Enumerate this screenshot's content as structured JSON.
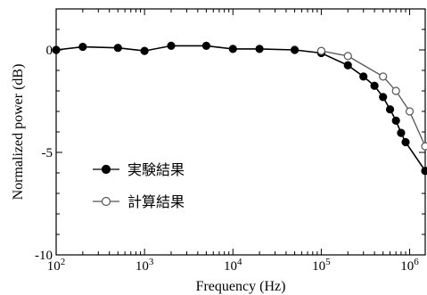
{
  "chart_data": {
    "type": "line",
    "xlabel": "Frequency (Hz)",
    "ylabel": "Normalized power (dB)",
    "x_scale": "log",
    "xlim": [
      100,
      1500000
    ],
    "ylim": [
      -10,
      2
    ],
    "grid": false,
    "legend_position": "lower-left",
    "x_ticks": [
      {
        "value": 100,
        "base": "10",
        "exp": "2"
      },
      {
        "value": 1000,
        "base": "10",
        "exp": "3"
      },
      {
        "value": 10000,
        "base": "10",
        "exp": "4"
      },
      {
        "value": 100000,
        "base": "10",
        "exp": "5"
      },
      {
        "value": 1000000,
        "base": "10",
        "exp": "6"
      }
    ],
    "y_ticks": [
      {
        "value": 0,
        "label": "0"
      },
      {
        "value": -5,
        "label": "-5"
      },
      {
        "value": -10,
        "label": "-10"
      }
    ],
    "series": [
      {
        "name": "実験結果",
        "marker": "filled-circle",
        "color": "#000000",
        "x": [
          100,
          200,
          500,
          1000,
          2000,
          5000,
          10000,
          20000,
          50000,
          100000,
          200000,
          300000,
          400000,
          500000,
          600000,
          700000,
          800000,
          900000,
          1500000
        ],
        "y": [
          0.0,
          0.15,
          0.1,
          -0.05,
          0.2,
          0.2,
          0.05,
          0.05,
          0.0,
          -0.15,
          -0.75,
          -1.3,
          -1.75,
          -2.3,
          -2.9,
          -3.45,
          -4.05,
          -4.5,
          -5.9
        ]
      },
      {
        "name": "計算結果",
        "marker": "open-circle",
        "color": "#555555",
        "x": [
          100000,
          200000,
          500000,
          700000,
          1000000,
          1500000
        ],
        "y": [
          -0.05,
          -0.3,
          -1.3,
          -2.0,
          -3.0,
          -4.7
        ]
      }
    ]
  }
}
